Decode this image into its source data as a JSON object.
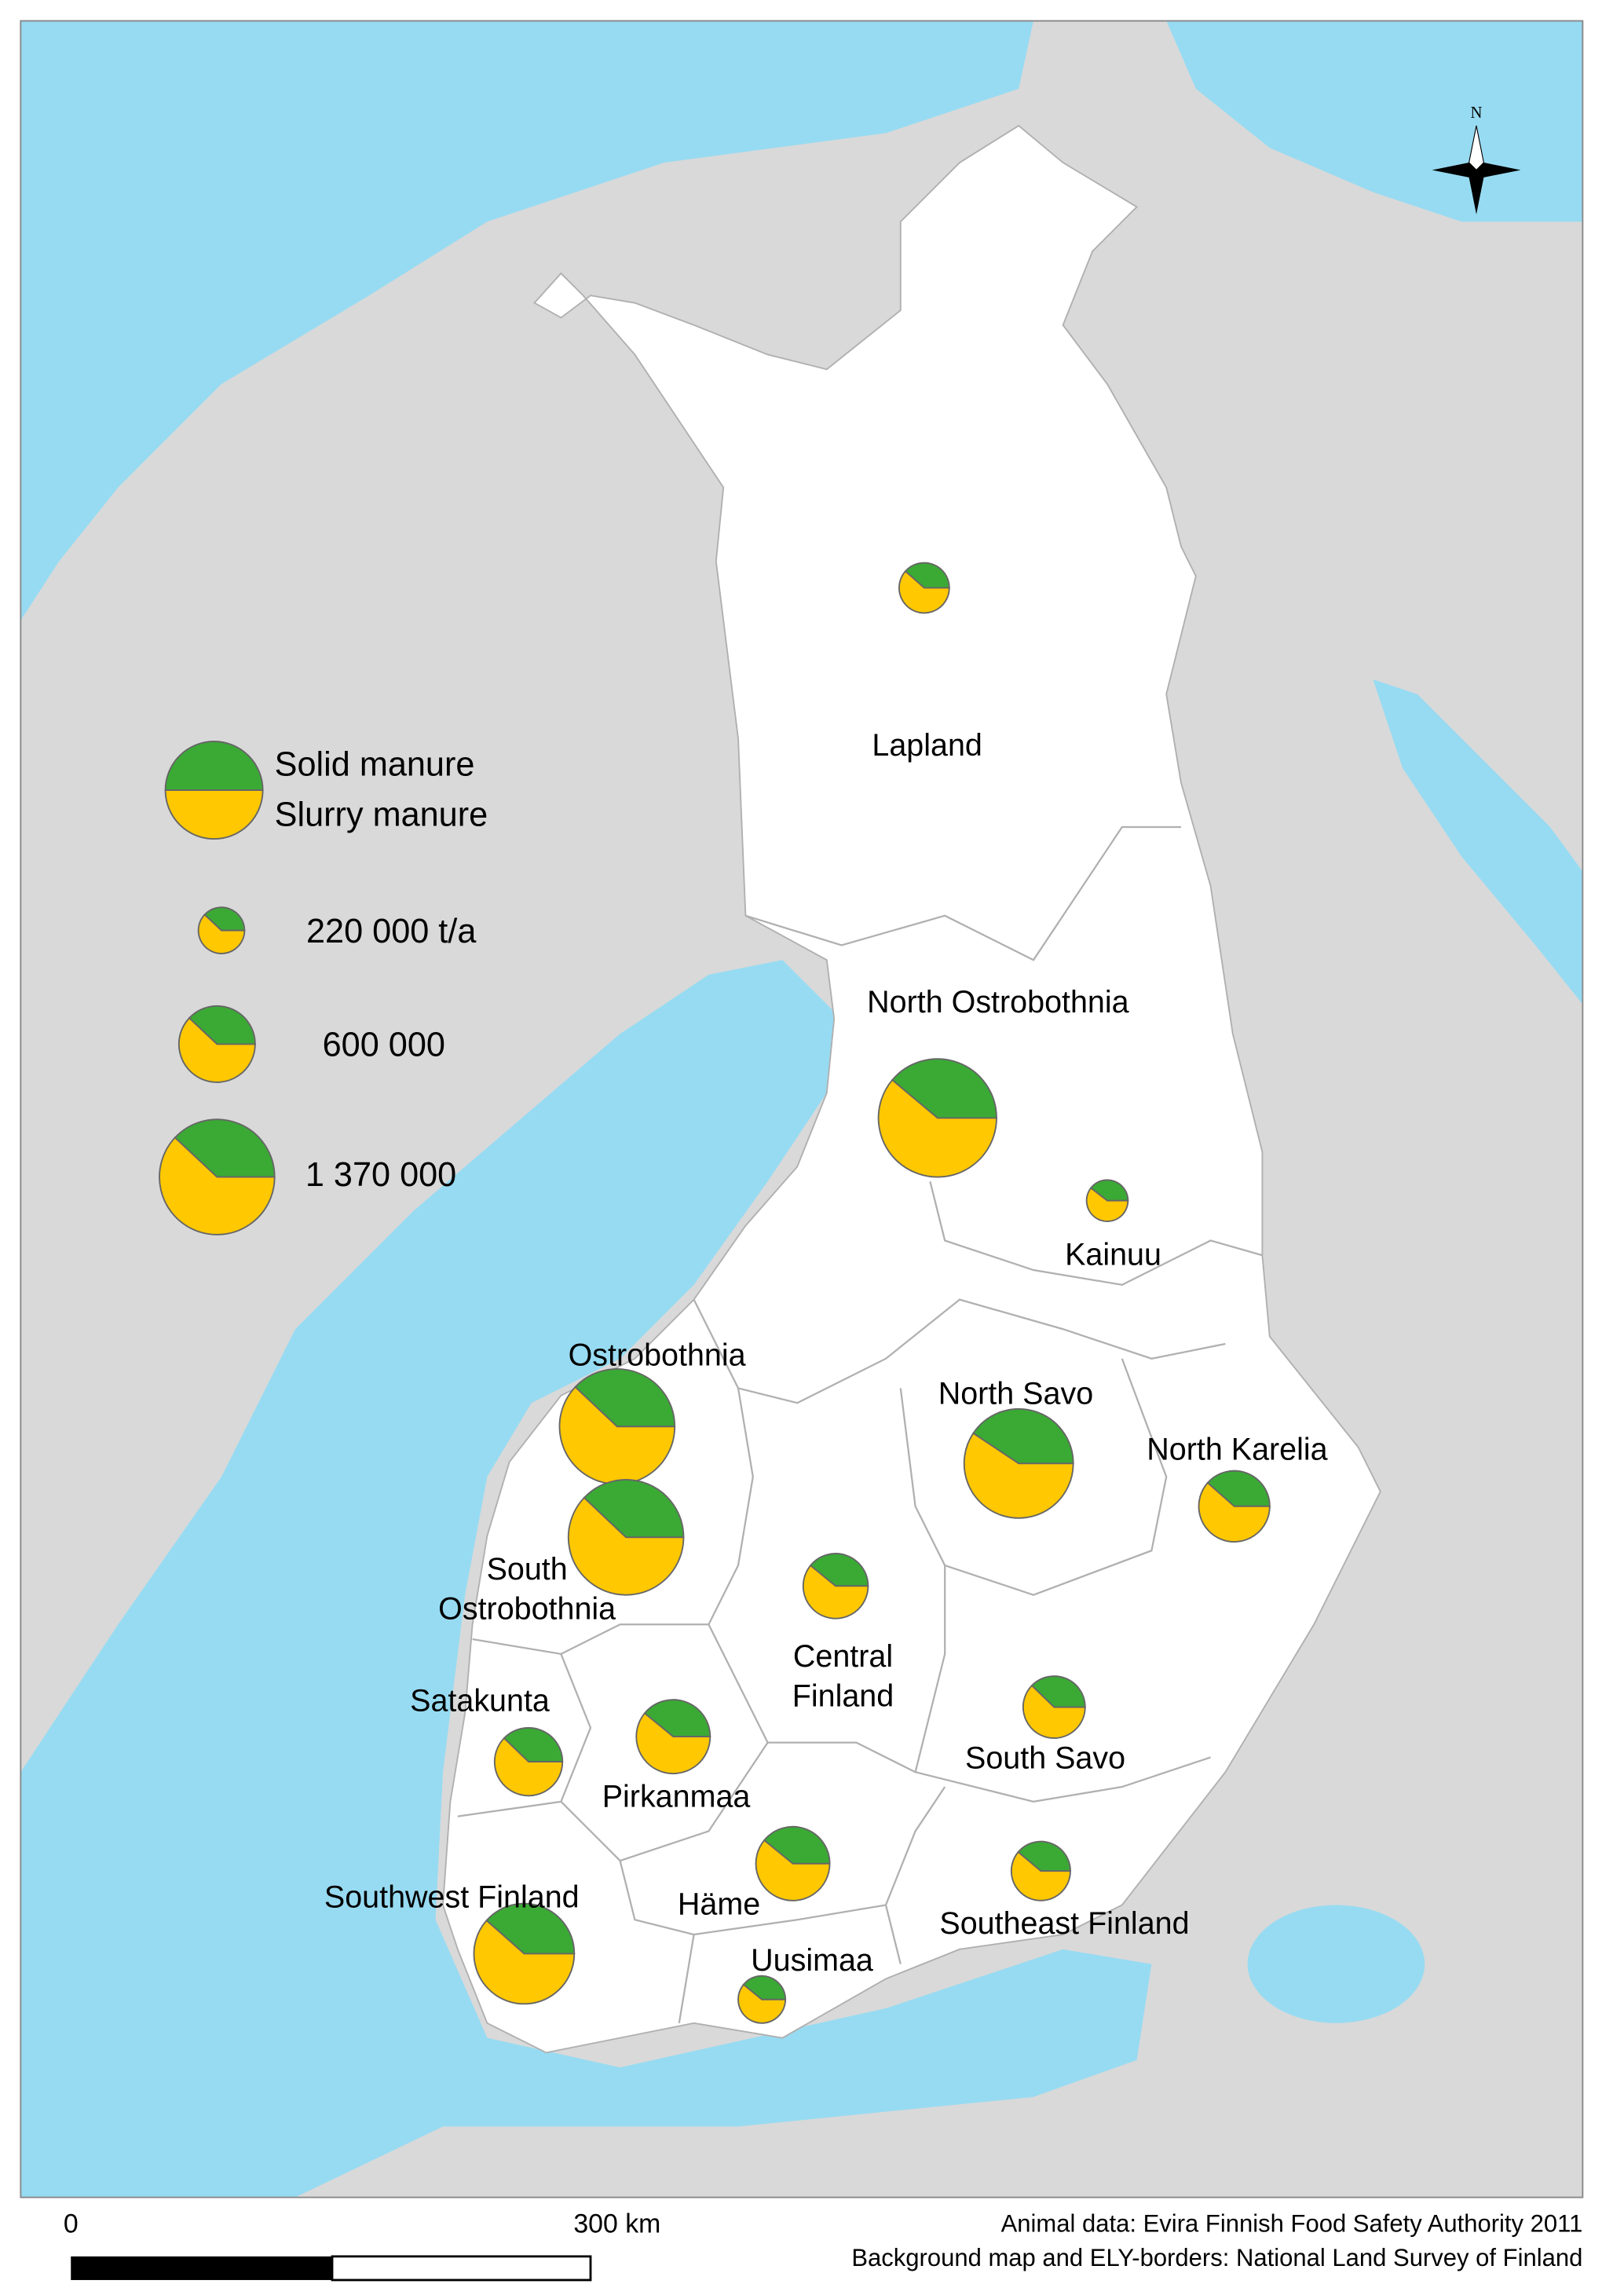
{
  "legend": {
    "solid_label": "Solid manure",
    "slurry_label": "Slurry manure",
    "sizes": [
      {
        "value": 220000,
        "label": "220 000 t/a"
      },
      {
        "value": 600000,
        "label": "600 000"
      },
      {
        "value": 1370000,
        "label": "1 370 000"
      }
    ]
  },
  "regions": [
    {
      "label": [
        "Lapland"
      ],
      "solid": 100000,
      "slurry": 160000
    },
    {
      "label": [
        "North Ostrobothnia"
      ],
      "solid": 560000,
      "slurry": 880000
    },
    {
      "label": [
        "Kainuu"
      ],
      "solid": 70000,
      "slurry": 107000
    },
    {
      "label": [
        "Ostrobothnia"
      ],
      "solid": 520000,
      "slurry": 850000
    },
    {
      "label": [
        "South",
        "Ostrobothnia"
      ],
      "solid": 520000,
      "slurry": 850000
    },
    {
      "label": [
        "North Savo"
      ],
      "solid": 500000,
      "slurry": 730000
    },
    {
      "label": [
        "North Karelia"
      ],
      "solid": 200000,
      "slurry": 320000
    },
    {
      "label": [
        "Central",
        "Finland"
      ],
      "solid": 170000,
      "slurry": 265000
    },
    {
      "label": [
        "Satakunta"
      ],
      "solid": 180000,
      "slurry": 296000
    },
    {
      "label": [
        "Pirkanmaa"
      ],
      "solid": 220000,
      "slurry": 343000
    },
    {
      "label": [
        "South Savo"
      ],
      "solid": 150000,
      "slurry": 247000
    },
    {
      "label": [
        "Häme"
      ],
      "solid": 220000,
      "slurry": 343000
    },
    {
      "label": [
        "Southeast Finland"
      ],
      "solid": 140000,
      "slurry": 220000
    },
    {
      "label": [
        "Southwest Finland"
      ],
      "solid": 400000,
      "slurry": 640000
    },
    {
      "label": [
        "Uusimaa"
      ],
      "solid": 90000,
      "slurry": 140000
    }
  ],
  "compass": "N",
  "scale_bar": {
    "start_label": "0",
    "end_label": "300 km"
  },
  "credits": [
    "Animal data: Evira Finnish Food Safety Authority 2011",
    "Background map and ELY-borders: National Land Survey of Finland"
  ]
}
